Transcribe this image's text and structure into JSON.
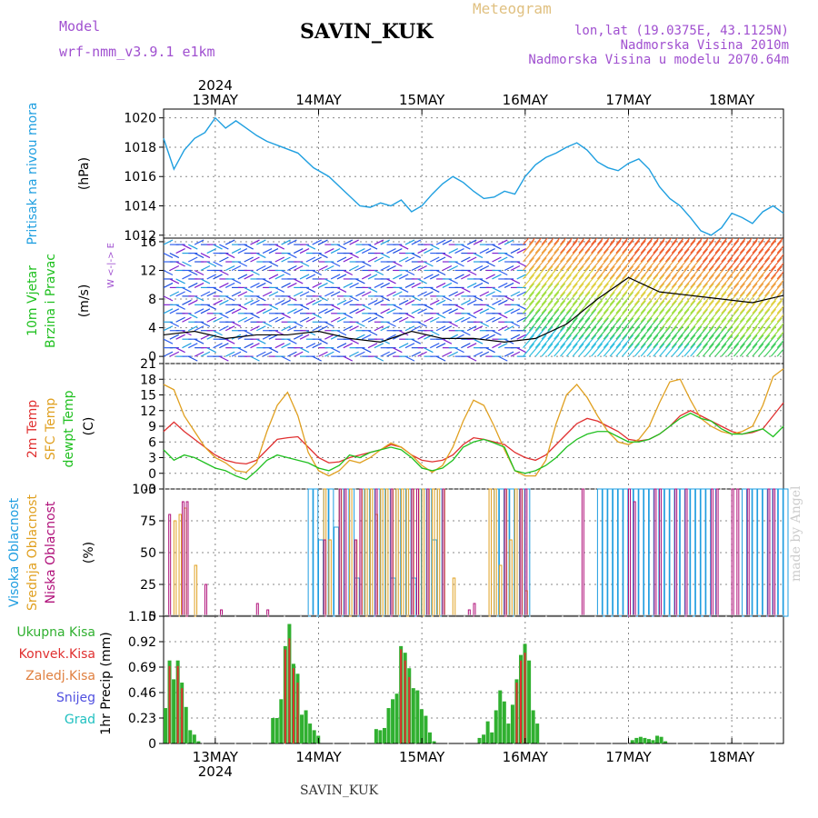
{
  "header": {
    "station": "SAVIN_KUK",
    "model_label": "Model",
    "model_name": "wrf-nmm_v3.9.1 e1km",
    "meteogram": "Meteogram",
    "lonlat": "lon,lat (19.0375E, 43.1125N)",
    "elevation": "Nadmorska Visina 2010m",
    "model_elevation": "Nadmorska Visina u modelu 2070.64m",
    "footer": "SAVIN_KUK",
    "watermark": "made by Angel"
  },
  "time_axis": {
    "year": "2024",
    "days": [
      "13MAY",
      "14MAY",
      "15MAY",
      "16MAY",
      "17MAY",
      "18MAY"
    ]
  },
  "colors": {
    "pressure": "#1f9fe0",
    "temp2m": "#e03030",
    "sfc": "#e0a020",
    "dewpt": "#20c020",
    "high_cloud": "#1e9de0",
    "mid_cloud": "#e0a020",
    "low_cloud": "#b0107a",
    "precip_total": "#30b030",
    "precip_conv": "#e03030"
  },
  "chart_data": [
    {
      "type": "line",
      "panel": "pressure",
      "ylabel_left": "Pritisak na nivou mora",
      "ylabel_unit": "(hPa)",
      "yticks": [
        "1012",
        "1014",
        "1016",
        "1018",
        "1020"
      ],
      "ylim": [
        1011.8,
        1020.6
      ],
      "grid": true,
      "series": [
        {
          "x": [
            0,
            0.1,
            0.2,
            0.3,
            0.4,
            0.5,
            0.6,
            0.7,
            0.8,
            0.9,
            1.0,
            1.15,
            1.3,
            1.45,
            1.6,
            1.75,
            1.9,
            2.0,
            2.1,
            2.2,
            2.3,
            2.4,
            2.5,
            2.6,
            2.7,
            2.8,
            2.9,
            3.0,
            3.1,
            3.2,
            3.3,
            3.4,
            3.5,
            3.6,
            3.7,
            3.8,
            3.9,
            4.0,
            4.1,
            4.2,
            4.3,
            4.4,
            4.5,
            4.6,
            4.7,
            4.8,
            4.9,
            5.0,
            5.1,
            5.2,
            5.3,
            5.4,
            5.5,
            5.6,
            5.7,
            5.8,
            5.9,
            6.0
          ],
          "values": [
            1018.6,
            1016.5,
            1017.8,
            1018.6,
            1019.0,
            1020.0,
            1019.3,
            1019.8,
            1019.3,
            1018.8,
            1018.4,
            1018.0,
            1017.6,
            1016.6,
            1016.0,
            1015.0,
            1014.0,
            1013.9,
            1014.2,
            1014.0,
            1014.4,
            1013.6,
            1014.0,
            1014.8,
            1015.5,
            1016.0,
            1015.6,
            1015.0,
            1014.5,
            1014.6,
            1015.0,
            1014.8,
            1016.0,
            1016.8,
            1017.3,
            1017.6,
            1018.0,
            1018.3,
            1017.8,
            1017.0,
            1016.6,
            1016.4,
            1016.9,
            1017.2,
            1016.5,
            1015.3,
            1014.5,
            1014.0,
            1013.2,
            1012.3,
            1012.0,
            1012.5,
            1013.5,
            1013.2,
            1012.8,
            1013.6,
            1014.0,
            1013.5
          ]
        }
      ]
    },
    {
      "type": "wind",
      "panel": "wind",
      "ylabel_left": [
        "10m Vjetar",
        "Brzina i Pravac"
      ],
      "ylabel_unit": "(m/s)",
      "compass": "W <-|-> E",
      "yticks": [
        "0",
        "4",
        "8",
        "12",
        "16"
      ],
      "ylim": [
        -1,
        16.5
      ],
      "grid": true,
      "series": [
        {
          "name": "",
          "x": [
            0,
            0.3,
            0.6,
            0.9,
            1.2,
            1.5,
            1.8,
            2.1,
            2.4,
            2.7,
            3.0,
            3.3,
            3.6,
            3.9,
            4.2,
            4.5,
            4.8,
            5.1,
            5.4,
            5.7,
            6.0
          ],
          "values": [
            3.0,
            3.5,
            2.5,
            3.0,
            3.0,
            3.5,
            2.5,
            2.0,
            3.5,
            2.5,
            2.5,
            2.0,
            2.5,
            4.5,
            8.0,
            11.0,
            9.0,
            8.5,
            8.0,
            7.5,
            8.5
          ]
        }
      ]
    },
    {
      "type": "line",
      "panel": "temperature",
      "ylabel_left": [
        "2m Temp",
        "SFC Temp",
        "dewpt Temp"
      ],
      "ylabel_unit": "(C)",
      "yticks": [
        "-3",
        "0",
        "3",
        "6",
        "9",
        "12",
        "15",
        "18",
        "21"
      ],
      "ylim": [
        -3,
        21
      ],
      "grid": true,
      "x": [
        0,
        0.1,
        0.2,
        0.3,
        0.4,
        0.5,
        0.6,
        0.7,
        0.8,
        0.9,
        1.0,
        1.1,
        1.2,
        1.3,
        1.4,
        1.5,
        1.6,
        1.7,
        1.8,
        1.9,
        2.0,
        2.1,
        2.2,
        2.3,
        2.4,
        2.5,
        2.6,
        2.7,
        2.8,
        2.9,
        3.0,
        3.1,
        3.2,
        3.3,
        3.4,
        3.5,
        3.6,
        3.7,
        3.8,
        3.9,
        4.0,
        4.1,
        4.2,
        4.3,
        4.4,
        4.5,
        4.6,
        4.7,
        4.8,
        4.9,
        5.0,
        5.1,
        5.2,
        5.3,
        5.4,
        5.5,
        5.6,
        5.7,
        5.8,
        5.9,
        6.0
      ],
      "series": [
        {
          "name": "2m Temp",
          "values": [
            8,
            9.8,
            8,
            6.5,
            5,
            3.5,
            2.5,
            2.0,
            1.8,
            2.5,
            4.5,
            6.5,
            6.8,
            7.0,
            5.0,
            3.0,
            2.0,
            2.2,
            3.0,
            3.5,
            4.0,
            4.5,
            5.5,
            5.0,
            3.5,
            2.5,
            2.2,
            2.5,
            3.5,
            5.5,
            6.8,
            6.5,
            6.0,
            5.5,
            4.0,
            3.0,
            2.5,
            3.5,
            5.5,
            7.5,
            9.5,
            10.5,
            10.0,
            9.0,
            8.0,
            6.5,
            6.2,
            6.5,
            7.5,
            9.0,
            11.0,
            12.0,
            11.0,
            10.0,
            9.0,
            8.0,
            7.5,
            7.8,
            8.5,
            11.0,
            13.5
          ]
        },
        {
          "name": "SFC Temp",
          "values": [
            17,
            16,
            11,
            8,
            5,
            3.0,
            2.0,
            0.5,
            0.2,
            2.0,
            8.0,
            13.0,
            15.5,
            11.0,
            4.0,
            0.5,
            -0.5,
            0.5,
            2.5,
            2.0,
            3.0,
            4.5,
            5.8,
            5.0,
            3.5,
            1.5,
            0.2,
            1.5,
            5.0,
            10.0,
            14.0,
            13.0,
            9.0,
            4.5,
            0.5,
            -0.5,
            -0.5,
            2.5,
            9.5,
            15.0,
            17.0,
            14.5,
            11.0,
            8.0,
            6.0,
            5.5,
            6.5,
            9.0,
            13.5,
            17.5,
            18.0,
            14.0,
            10.5,
            9.0,
            8.0,
            7.5,
            8.0,
            9.0,
            13.0,
            18.5,
            20.0
          ]
        },
        {
          "name": "dewpt Temp",
          "values": [
            4.5,
            2.5,
            3.5,
            3.0,
            2.0,
            1.0,
            0.5,
            -0.5,
            -1.2,
            0.5,
            2.5,
            3.5,
            3.0,
            2.5,
            2.0,
            1.0,
            0.5,
            1.5,
            3.5,
            3.0,
            4.0,
            4.5,
            5.0,
            4.5,
            3.0,
            1.0,
            0.5,
            1.0,
            2.5,
            5.0,
            6.0,
            6.5,
            5.8,
            5.0,
            0.5,
            0.0,
            0.5,
            1.5,
            3.0,
            5.0,
            6.5,
            7.5,
            8.0,
            8.0,
            7.0,
            6.0,
            6.0,
            6.5,
            7.5,
            9.0,
            10.5,
            11.5,
            10.5,
            10.0,
            8.5,
            7.5,
            7.5,
            8.0,
            8.5,
            7.0,
            9.0
          ]
        }
      ]
    },
    {
      "type": "bar",
      "panel": "cloud",
      "ylabel_left": [
        "Visoka Oblacnost",
        "Srednja Oblacnost",
        "Niska Oblacnost"
      ],
      "ylabel_unit": "(%)",
      "yticks": [
        "0",
        "25",
        "50",
        "75",
        "100"
      ],
      "ylim": [
        0,
        100
      ],
      "grid": true,
      "series": [
        {
          "name": "Visoka Oblacnost",
          "x": [
            1.4,
            1.45,
            1.5,
            1.55,
            1.6,
            1.65,
            1.7,
            1.75,
            1.8,
            1.85,
            1.9,
            1.95,
            2.0,
            2.05,
            2.1,
            2.15,
            2.2,
            2.25,
            2.3,
            2.35,
            2.4,
            2.45,
            2.5,
            2.55,
            2.6,
            2.65,
            3.2,
            3.25,
            3.3,
            3.35,
            3.4,
            3.45,
            3.5,
            4.2,
            4.25,
            4.3,
            4.35,
            4.4,
            4.45,
            4.5,
            4.55,
            4.6,
            4.65,
            4.7,
            4.75,
            4.8,
            4.85,
            4.9,
            4.95,
            5.0,
            5.05,
            5.1,
            5.15,
            5.2,
            5.25,
            5.3,
            5.6,
            5.65,
            5.7,
            5.75,
            5.8,
            5.85,
            5.9,
            5.95,
            6.0
          ],
          "values": [
            100,
            100,
            60,
            100,
            100,
            70,
            100,
            100,
            100,
            30,
            100,
            100,
            100,
            100,
            100,
            100,
            30,
            100,
            100,
            100,
            30,
            100,
            100,
            100,
            60,
            100,
            100,
            100,
            100,
            100,
            100,
            100,
            100,
            100,
            100,
            100,
            100,
            100,
            100,
            100,
            100,
            100,
            100,
            100,
            100,
            100,
            100,
            100,
            100,
            100,
            100,
            100,
            100,
            100,
            100,
            100,
            100,
            100,
            100,
            100,
            100,
            100,
            100,
            100,
            100
          ]
        },
        {
          "name": "Srednja Oblacnost",
          "x": [
            0.1,
            0.15,
            0.2,
            0.3,
            1.55,
            1.6,
            1.7,
            1.8,
            1.85,
            1.9,
            1.95,
            2.0,
            2.05,
            2.1,
            2.15,
            2.2,
            2.25,
            2.3,
            2.35,
            2.4,
            2.45,
            2.5,
            2.55,
            2.6,
            2.65,
            2.7,
            2.8,
            3.15,
            3.2,
            3.25,
            3.3,
            3.35,
            3.4,
            3.45,
            3.5
          ],
          "values": [
            75,
            80,
            85,
            40,
            100,
            60,
            100,
            100,
            60,
            100,
            100,
            100,
            80,
            100,
            100,
            100,
            100,
            100,
            100,
            100,
            100,
            100,
            100,
            100,
            100,
            100,
            30,
            100,
            100,
            40,
            100,
            60,
            100,
            100,
            20
          ]
        },
        {
          "name": "Niska Oblacnost",
          "x": [
            0.05,
            0.18,
            0.22,
            0.4,
            0.55,
            0.9,
            1.0,
            1.55,
            1.7,
            1.75,
            1.85,
            1.9,
            2.05,
            2.2,
            2.4,
            2.45,
            2.55,
            2.7,
            2.95,
            3.0,
            3.3,
            3.45,
            3.5,
            4.05,
            4.5,
            4.55,
            4.75,
            4.8,
            4.95,
            5.05,
            5.3,
            5.35,
            5.5,
            5.55,
            5.65,
            5.85,
            5.9
          ],
          "values": [
            80,
            90,
            90,
            25,
            5,
            10,
            5,
            60,
            100,
            100,
            60,
            100,
            100,
            100,
            100,
            100,
            100,
            100,
            5,
            10,
            100,
            100,
            100,
            100,
            100,
            90,
            100,
            100,
            100,
            100,
            100,
            100,
            100,
            100,
            100,
            100,
            100
          ]
        }
      ]
    },
    {
      "type": "bar",
      "panel": "precipitation",
      "ylabel_unit": "1hr Precip (mm)",
      "legend": [
        "Ukupna Kisa",
        "Konvek.Kisa",
        "Zaledj.Kisa",
        "Snijeg",
        "Grad"
      ],
      "legend_colors": [
        "#30b030",
        "#e03030",
        "#e08040",
        "#5050e0",
        "#20c0c0"
      ],
      "yticks": [
        "0",
        "0.23",
        "0.46",
        "0.69",
        "0.92",
        "1.15"
      ],
      "ylim": [
        0,
        1.15
      ],
      "grid": true,
      "series": [
        {
          "name": "Ukupna Kisa",
          "x": [
            0.0,
            0.04,
            0.08,
            0.12,
            0.16,
            0.2,
            0.24,
            0.28,
            0.32,
            1.04,
            1.08,
            1.12,
            1.16,
            1.2,
            1.24,
            1.28,
            1.32,
            1.36,
            1.4,
            1.44,
            1.48,
            1.52,
            1.56,
            1.6,
            2.04,
            2.08,
            2.12,
            2.16,
            2.2,
            2.24,
            2.28,
            2.32,
            2.36,
            2.4,
            2.44,
            2.48,
            2.52,
            2.56,
            2.6,
            3.04,
            3.08,
            3.12,
            3.16,
            3.2,
            3.24,
            3.28,
            3.32,
            3.36,
            3.4,
            3.44,
            3.48,
            3.52,
            3.56,
            3.6,
            4.52,
            4.56,
            4.6,
            4.64,
            4.68,
            4.72,
            4.76,
            4.8,
            4.84
          ],
          "values": [
            0.32,
            0.75,
            0.58,
            0.75,
            0.55,
            0.33,
            0.12,
            0.08,
            0.02,
            0.23,
            0.23,
            0.4,
            0.88,
            1.08,
            0.72,
            0.63,
            0.26,
            0.3,
            0.18,
            0.12,
            0.07,
            0.0,
            0.0,
            0.0,
            0.13,
            0.12,
            0.14,
            0.32,
            0.4,
            0.45,
            0.88,
            0.82,
            0.68,
            0.5,
            0.48,
            0.31,
            0.25,
            0.1,
            0.02,
            0.05,
            0.08,
            0.2,
            0.1,
            0.3,
            0.48,
            0.38,
            0.18,
            0.35,
            0.58,
            0.8,
            0.9,
            0.75,
            0.3,
            0.18,
            0.03,
            0.05,
            0.06,
            0.05,
            0.04,
            0.03,
            0.07,
            0.06,
            0.02
          ]
        },
        {
          "name": "Konvek.Kisa",
          "x": [
            0.04,
            0.12,
            0.16,
            1.16,
            1.2,
            1.24,
            1.28,
            2.28,
            2.32,
            2.36,
            3.4,
            3.44,
            3.48
          ],
          "values": [
            0.7,
            0.7,
            0.5,
            0.85,
            0.95,
            0.68,
            0.55,
            0.85,
            0.75,
            0.6,
            0.55,
            0.75,
            0.82
          ]
        }
      ]
    }
  ]
}
